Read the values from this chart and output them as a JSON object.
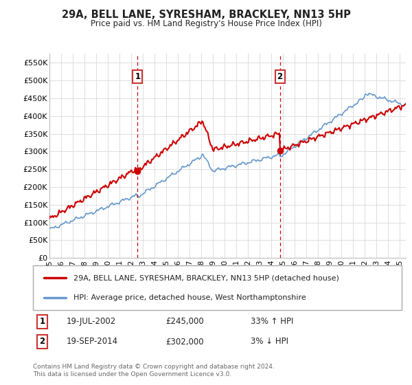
{
  "title": "29A, BELL LANE, SYRESHAM, BRACKLEY, NN13 5HP",
  "subtitle": "Price paid vs. HM Land Registry's House Price Index (HPI)",
  "ylabel_ticks": [
    "£0",
    "£50K",
    "£100K",
    "£150K",
    "£200K",
    "£250K",
    "£300K",
    "£350K",
    "£400K",
    "£450K",
    "£500K",
    "£550K"
  ],
  "ytick_values": [
    0,
    50000,
    100000,
    150000,
    200000,
    250000,
    300000,
    350000,
    400000,
    450000,
    500000,
    550000
  ],
  "ylim": [
    0,
    575000
  ],
  "price_paid_color": "#cc0000",
  "hpi_color": "#6699cc",
  "sale1_date": "19-JUL-2002",
  "sale1_price": 245000,
  "sale1_pct": "33%",
  "sale1_direction": "↑",
  "sale2_date": "19-SEP-2014",
  "sale2_price": 302000,
  "sale2_pct": "3%",
  "sale2_direction": "↓",
  "legend_label1": "29A, BELL LANE, SYRESHAM, BRACKLEY, NN13 5HP (detached house)",
  "legend_label2": "HPI: Average price, detached house, West Northamptonshire",
  "footer": "Contains HM Land Registry data © Crown copyright and database right 2024.\nThis data is licensed under the Open Government Licence v3.0.",
  "bg_color": "#ffffff",
  "grid_color": "#dddddd",
  "sale1_x": 2002.54,
  "sale2_x": 2014.72,
  "annotation_box_color": "#cc3333",
  "xlim_left": 1995,
  "xlim_right": 2025.5
}
